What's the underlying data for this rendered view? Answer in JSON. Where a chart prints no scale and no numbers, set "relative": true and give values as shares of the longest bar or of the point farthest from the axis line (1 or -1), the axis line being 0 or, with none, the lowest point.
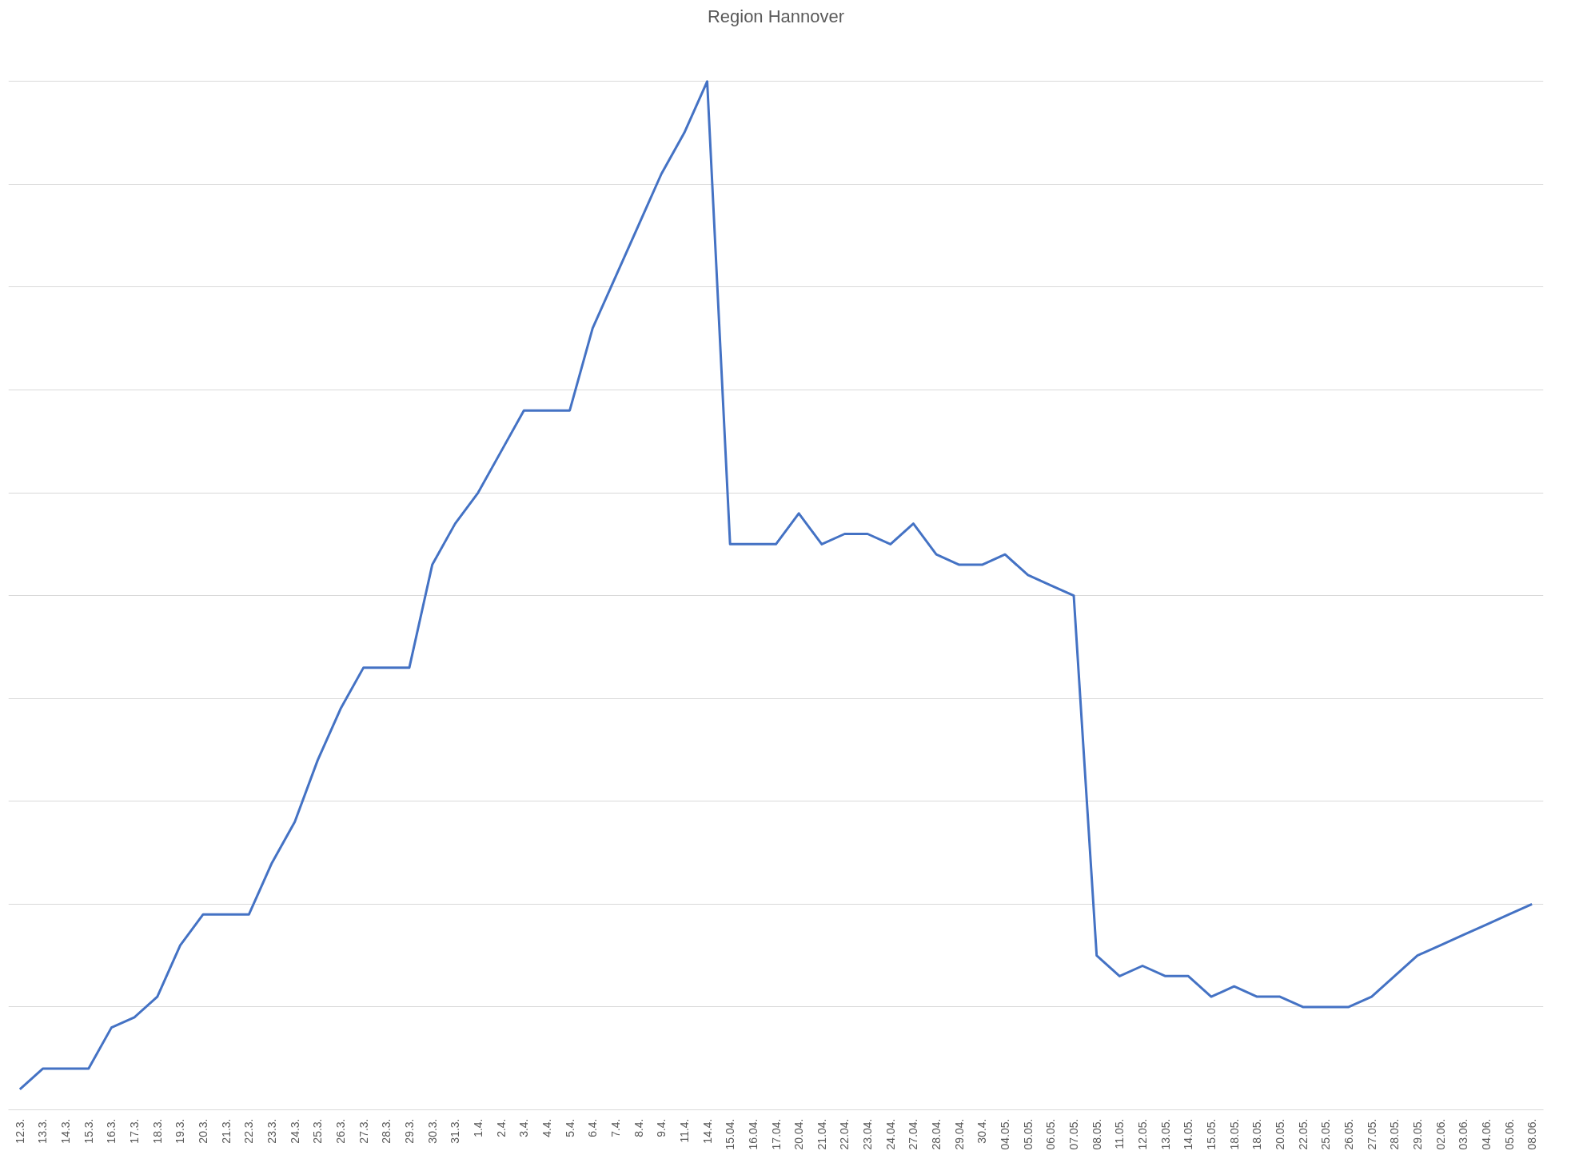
{
  "chart_data": {
    "type": "line",
    "title": "Region Hannover",
    "relative": true,
    "grid": "y",
    "marker": "none",
    "line_style": "solid",
    "categories": [
      "12.3.",
      "13.3.",
      "14.3.",
      "15.3.",
      "16.3.",
      "17.3.",
      "18.3.",
      "19.3.",
      "20.3.",
      "21.3.",
      "22.3.",
      "23.3.",
      "24.3.",
      "25.3.",
      "26.3.",
      "27.3.",
      "28.3.",
      "29.3.",
      "30.3.",
      "31.3.",
      "1.4.",
      "2.4.",
      "3.4.",
      "4.4.",
      "5.4.",
      "6.4.",
      "7.4.",
      "8.4.",
      "9.4.",
      "11.4.",
      "14.4.",
      "15.04.",
      "16.04.",
      "17.04.",
      "20.04.",
      "21.04.",
      "22.04.",
      "23.04.",
      "24.04.",
      "27.04.",
      "28.04.",
      "29.04.",
      "30.4.",
      "04.05.",
      "05.05.",
      "06.05.",
      "07.05.",
      "08.05.",
      "11.05.",
      "12.05.",
      "13.05.",
      "14.05.",
      "15.05.",
      "18.05.",
      "18.05.",
      "20.05.",
      "22.05.",
      "25.05.",
      "26.05.",
      "27.05.",
      "28.05.",
      "29.05.",
      "02.06.",
      "03.06.",
      "04.06.",
      "05.06.",
      "08.06."
    ],
    "series": [
      {
        "color": "#4472c4",
        "values": [
          0.02,
          0.04,
          0.04,
          0.04,
          0.08,
          0.09,
          0.11,
          0.16,
          0.19,
          0.19,
          0.19,
          0.24,
          0.28,
          0.34,
          0.39,
          0.43,
          0.43,
          0.43,
          0.53,
          0.57,
          0.6,
          0.64,
          0.68,
          0.68,
          0.68,
          0.76,
          0.81,
          0.86,
          0.91,
          0.95,
          1,
          0.55,
          0.55,
          0.55,
          0.58,
          0.55,
          0.56,
          0.56,
          0.55,
          0.57,
          0.54,
          0.53,
          0.53,
          0.54,
          0.52,
          0.51,
          0.5,
          0.15,
          0.13,
          0.14,
          0.13,
          0.13,
          0.11,
          0.12,
          0.11,
          0.11,
          0.1,
          0.1,
          0.1,
          0.11,
          0.13,
          0.15,
          0.16,
          0.17,
          0.18,
          0.19,
          0.2
        ]
      }
    ]
  }
}
